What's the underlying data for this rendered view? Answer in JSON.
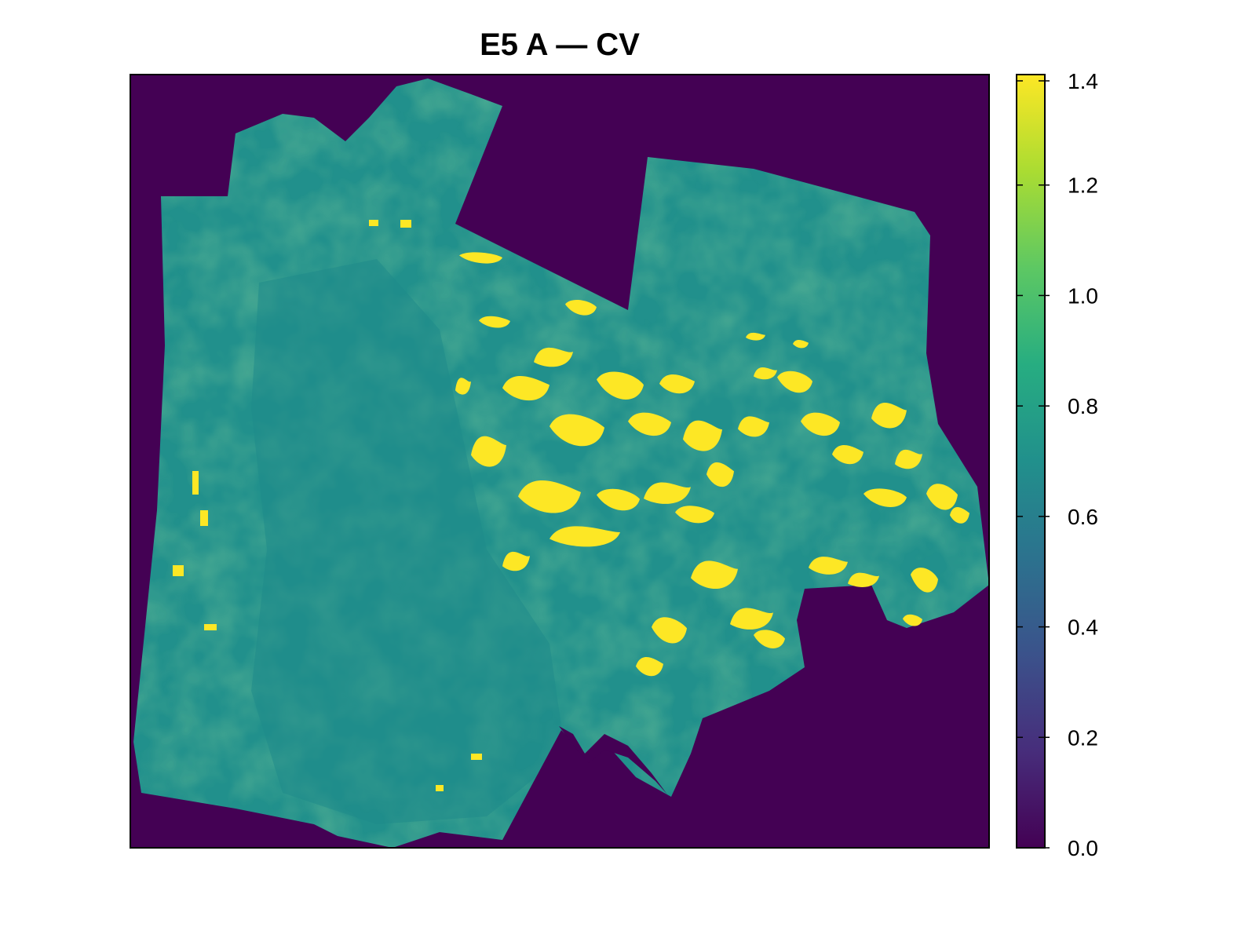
{
  "chart_data": {
    "type": "heatmap",
    "title": "E5 A — CV",
    "xlabel": "",
    "ylabel": "",
    "legend": {
      "position": "right",
      "type": "continuous colorbar",
      "range": [
        0.0,
        1.4
      ],
      "ticks": [
        0.0,
        0.2,
        0.4,
        0.6,
        0.8,
        1.0,
        1.2,
        1.4
      ],
      "tick_labels": [
        "0.0",
        "0.2",
        "0.4",
        "0.6",
        "0.8",
        "1.0",
        "1.2",
        "1.4"
      ]
    },
    "colorscale": "viridis",
    "colors": {
      "nodata_background": "#440154",
      "typical_field": "#21908C",
      "high_values": "#FDE725"
    },
    "value_summary": {
      "background_value": 0.0,
      "typical_range": [
        0.6,
        1.0
      ],
      "saturated_patches_value": 1.4
    },
    "grid": false
  }
}
